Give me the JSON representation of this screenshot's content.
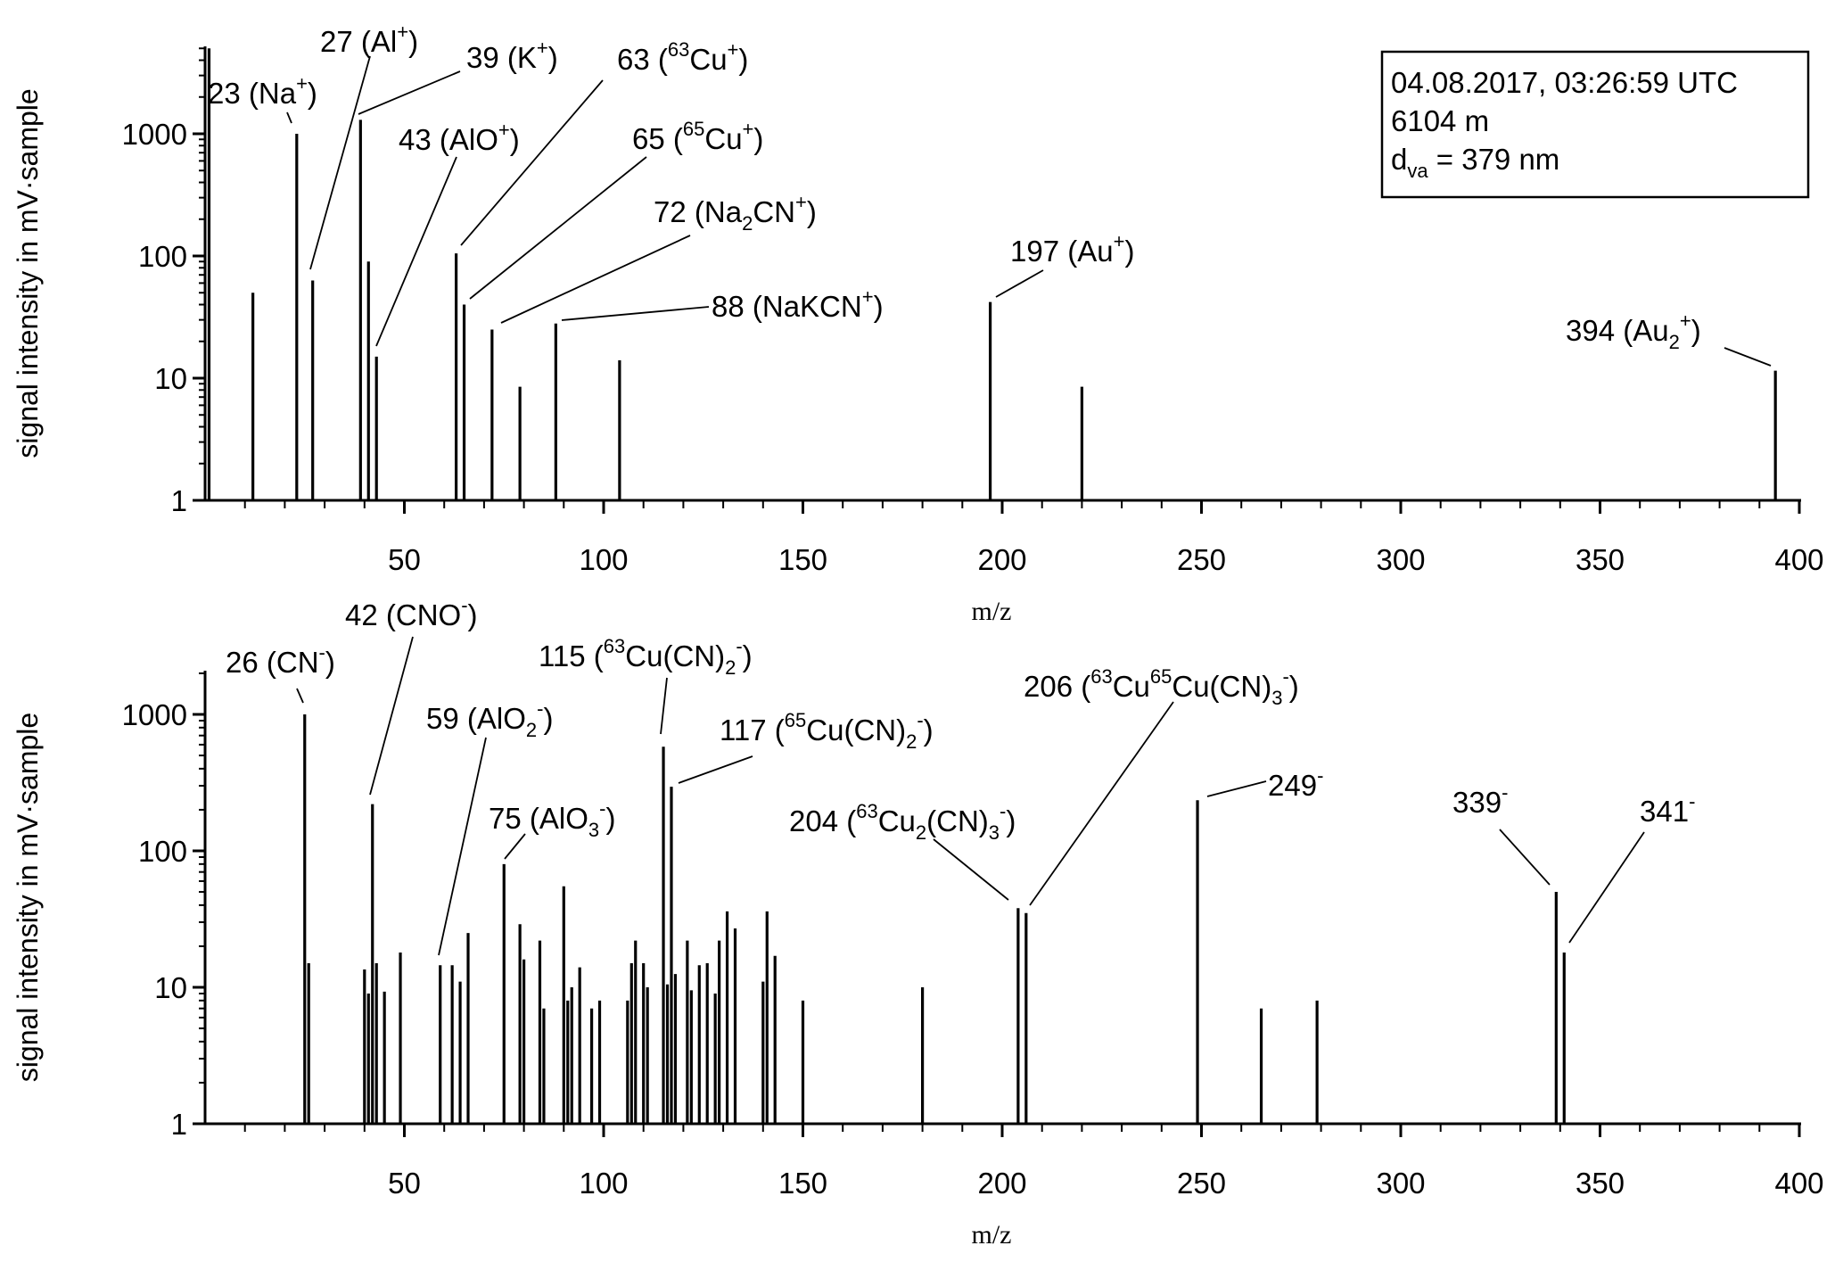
{
  "info_box": {
    "datetime": "04.08.2017, 03:26:59 UTC",
    "altitude": "6104 m",
    "dva_label": "d",
    "dva_sub": "va",
    "dva_value": " = 379 nm"
  },
  "chart_data": [
    {
      "type": "bar",
      "panel": "top",
      "polarity": "positive ions",
      "xlabel": "m/z",
      "ylabel": "signal intensity in mV·sample",
      "xlim": [
        0,
        400
      ],
      "ylim": [
        1,
        5000
      ],
      "yscale": "log",
      "x_ticks": [
        50,
        100,
        150,
        200,
        250,
        300,
        350,
        400
      ],
      "y_ticks": [
        {
          "value": 1,
          "label": "1"
        },
        {
          "value": 10,
          "label": "10"
        },
        {
          "value": 100,
          "label": "100"
        },
        {
          "value": 1000,
          "label": "1000"
        }
      ],
      "peaks": [
        {
          "x": 1,
          "y": 5000
        },
        {
          "x": 12,
          "y": 50
        },
        {
          "x": 23,
          "y": 1000
        },
        {
          "x": 27,
          "y": 63
        },
        {
          "x": 39,
          "y": 1300
        },
        {
          "x": 41,
          "y": 90
        },
        {
          "x": 43,
          "y": 15
        },
        {
          "x": 63,
          "y": 105
        },
        {
          "x": 65,
          "y": 40
        },
        {
          "x": 72,
          "y": 25
        },
        {
          "x": 79,
          "y": 8.5
        },
        {
          "x": 88,
          "y": 28
        },
        {
          "x": 104,
          "y": 14
        },
        {
          "x": 197,
          "y": 42
        },
        {
          "x": 220,
          "y": 8.5
        },
        {
          "x": 394,
          "y": 11.5
        }
      ],
      "annotations": [
        {
          "segments": [
            {
              "t": "23 (Na"
            },
            {
              "t": "+",
              "s": "sup"
            },
            {
              "t": ")"
            }
          ]
        },
        {
          "segments": [
            {
              "t": "27 (Al"
            },
            {
              "t": "+",
              "s": "sup"
            },
            {
              "t": ")"
            }
          ]
        },
        {
          "segments": [
            {
              "t": "39 (K"
            },
            {
              "t": "+",
              "s": "sup"
            },
            {
              "t": ")"
            }
          ]
        },
        {
          "segments": [
            {
              "t": "43 (AlO"
            },
            {
              "t": "+",
              "s": "sup"
            },
            {
              "t": ")"
            }
          ]
        },
        {
          "segments": [
            {
              "t": "63 ("
            },
            {
              "t": "63",
              "s": "sup"
            },
            {
              "t": "Cu"
            },
            {
              "t": "+",
              "s": "sup"
            },
            {
              "t": ")"
            }
          ]
        },
        {
          "segments": [
            {
              "t": "65 ("
            },
            {
              "t": "65",
              "s": "sup"
            },
            {
              "t": "Cu"
            },
            {
              "t": "+",
              "s": "sup"
            },
            {
              "t": ")"
            }
          ]
        },
        {
          "segments": [
            {
              "t": "72 (Na"
            },
            {
              "t": "2",
              "s": "sub"
            },
            {
              "t": "CN"
            },
            {
              "t": "+",
              "s": "sup"
            },
            {
              "t": ")"
            }
          ]
        },
        {
          "segments": [
            {
              "t": "88 (NaKCN"
            },
            {
              "t": "+",
              "s": "sup"
            },
            {
              "t": ")"
            }
          ]
        },
        {
          "segments": [
            {
              "t": "197 (Au"
            },
            {
              "t": "+",
              "s": "sup"
            },
            {
              "t": ")"
            }
          ]
        },
        {
          "segments": [
            {
              "t": "394 (Au"
            },
            {
              "t": "2",
              "s": "sub"
            },
            {
              "t": "+",
              "s": "sup"
            },
            {
              "t": ")"
            }
          ]
        }
      ]
    },
    {
      "type": "bar",
      "panel": "bottom",
      "polarity": "negative ions",
      "xlabel": "m/z",
      "ylabel": "signal intensity in mV·sample",
      "xlim": [
        0,
        400
      ],
      "ylim": [
        1,
        2000
      ],
      "yscale": "log",
      "x_ticks": [
        50,
        100,
        150,
        200,
        250,
        300,
        350,
        400
      ],
      "y_ticks": [
        {
          "value": 1,
          "label": "1"
        },
        {
          "value": 10,
          "label": "10"
        },
        {
          "value": 100,
          "label": "100"
        },
        {
          "value": 1000,
          "label": "1000"
        }
      ],
      "peaks": [
        {
          "x": 25,
          "y": 1000
        },
        {
          "x": 26,
          "y": 15
        },
        {
          "x": 40,
          "y": 13.5
        },
        {
          "x": 41,
          "y": 9
        },
        {
          "x": 42,
          "y": 220
        },
        {
          "x": 43,
          "y": 15
        },
        {
          "x": 45,
          "y": 9.3
        },
        {
          "x": 49,
          "y": 18
        },
        {
          "x": 59,
          "y": 14.5
        },
        {
          "x": 62,
          "y": 14.5
        },
        {
          "x": 64,
          "y": 11
        },
        {
          "x": 66,
          "y": 25
        },
        {
          "x": 75,
          "y": 80
        },
        {
          "x": 79,
          "y": 29
        },
        {
          "x": 80,
          "y": 16
        },
        {
          "x": 84,
          "y": 22
        },
        {
          "x": 85,
          "y": 7
        },
        {
          "x": 90,
          "y": 55
        },
        {
          "x": 91,
          "y": 8
        },
        {
          "x": 92,
          "y": 10
        },
        {
          "x": 94,
          "y": 14
        },
        {
          "x": 97,
          "y": 7
        },
        {
          "x": 99,
          "y": 8
        },
        {
          "x": 106,
          "y": 8
        },
        {
          "x": 107,
          "y": 15
        },
        {
          "x": 108,
          "y": 22
        },
        {
          "x": 110,
          "y": 15
        },
        {
          "x": 111,
          "y": 10
        },
        {
          "x": 115,
          "y": 580
        },
        {
          "x": 116,
          "y": 10.5
        },
        {
          "x": 117,
          "y": 295
        },
        {
          "x": 118,
          "y": 12.5
        },
        {
          "x": 121,
          "y": 22
        },
        {
          "x": 122,
          "y": 9.5
        },
        {
          "x": 124,
          "y": 14.5
        },
        {
          "x": 126,
          "y": 15
        },
        {
          "x": 128,
          "y": 9
        },
        {
          "x": 129,
          "y": 22
        },
        {
          "x": 131,
          "y": 36
        },
        {
          "x": 133,
          "y": 27
        },
        {
          "x": 140,
          "y": 11
        },
        {
          "x": 141,
          "y": 36
        },
        {
          "x": 143,
          "y": 17
        },
        {
          "x": 150,
          "y": 8
        },
        {
          "x": 180,
          "y": 10
        },
        {
          "x": 204,
          "y": 38
        },
        {
          "x": 206,
          "y": 35
        },
        {
          "x": 249,
          "y": 235
        },
        {
          "x": 265,
          "y": 7
        },
        {
          "x": 279,
          "y": 8
        },
        {
          "x": 339,
          "y": 50
        },
        {
          "x": 341,
          "y": 18
        }
      ],
      "annotations": [
        {
          "segments": [
            {
              "t": "26 (CN"
            },
            {
              "t": "-",
              "s": "sup"
            },
            {
              "t": ")"
            }
          ]
        },
        {
          "segments": [
            {
              "t": "42 (CNO"
            },
            {
              "t": "-",
              "s": "sup"
            },
            {
              "t": ")"
            }
          ]
        },
        {
          "segments": [
            {
              "t": "59 (AlO"
            },
            {
              "t": "2",
              "s": "sub"
            },
            {
              "t": "-",
              "s": "sup"
            },
            {
              "t": ")"
            }
          ]
        },
        {
          "segments": [
            {
              "t": "75 (AlO"
            },
            {
              "t": "3",
              "s": "sub"
            },
            {
              "t": "-",
              "s": "sup"
            },
            {
              "t": ")"
            }
          ]
        },
        {
          "segments": [
            {
              "t": "115 ("
            },
            {
              "t": "63",
              "s": "sup"
            },
            {
              "t": "Cu(CN)"
            },
            {
              "t": "2",
              "s": "sub"
            },
            {
              "t": "-",
              "s": "sup"
            },
            {
              "t": ")"
            }
          ]
        },
        {
          "segments": [
            {
              "t": "117 ("
            },
            {
              "t": "65",
              "s": "sup"
            },
            {
              "t": "Cu(CN)"
            },
            {
              "t": "2",
              "s": "sub"
            },
            {
              "t": "-",
              "s": "sup"
            },
            {
              "t": ")"
            }
          ]
        },
        {
          "segments": [
            {
              "t": "204 ("
            },
            {
              "t": "63",
              "s": "sup"
            },
            {
              "t": "Cu"
            },
            {
              "t": "2",
              "s": "sub"
            },
            {
              "t": "(CN)"
            },
            {
              "t": "3",
              "s": "sub"
            },
            {
              "t": "-",
              "s": "sup"
            },
            {
              "t": ")"
            }
          ]
        },
        {
          "segments": [
            {
              "t": "206 ("
            },
            {
              "t": "63",
              "s": "sup"
            },
            {
              "t": "Cu"
            },
            {
              "t": "65",
              "s": "sup"
            },
            {
              "t": "Cu(CN)"
            },
            {
              "t": "3",
              "s": "sub"
            },
            {
              "t": "-",
              "s": "sup"
            },
            {
              "t": ")"
            }
          ]
        },
        {
          "segments": [
            {
              "t": "249"
            },
            {
              "t": "-",
              "s": "sup"
            }
          ]
        },
        {
          "segments": [
            {
              "t": "339"
            },
            {
              "t": "-",
              "s": "sup"
            }
          ]
        },
        {
          "segments": [
            {
              "t": "341"
            },
            {
              "t": "-",
              "s": "sup"
            }
          ]
        }
      ]
    }
  ]
}
